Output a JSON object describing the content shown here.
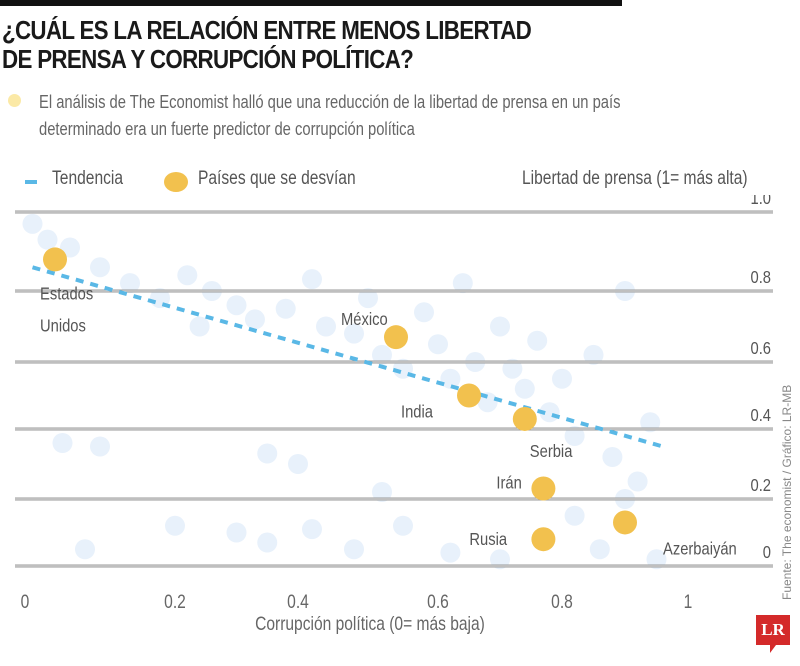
{
  "title_lines": [
    "¿CUÁL ES LA RELACIÓN ENTRE MENOS LIBERTAD",
    "DE PRENSA Y CORRUPCIÓN POLÍTICA?"
  ],
  "note_lines": [
    "El análisis de The Economist halló que  una reducción de la libertad de prensa en un país",
    "determinado era un fuerte predictor de corrupción política"
  ],
  "source": "Fuente: The economist / Gráfico: LR-MB",
  "logo": "LR",
  "colors": {
    "trend": "#5ab8e6",
    "highlight": "#f2c14e",
    "background_points": "#e8f1fb",
    "grid": "#999999",
    "note_dot": "#fbe9a6"
  },
  "chart_data": {
    "type": "scatter",
    "xlabel": "Corrupción política (0= más baja)",
    "ylabel": "Libertad de prensa (1= más alta)",
    "xlim": [
      0,
      1.1
    ],
    "ylim": [
      0,
      1.0
    ],
    "x_ticks": [
      "0",
      "0.2",
      "0.4",
      "0.6",
      "0.8",
      "1"
    ],
    "x_tick_values": [
      0,
      0.2,
      0.4,
      0.6,
      0.8,
      1
    ],
    "y_ticks": [
      "1.0",
      "0.8",
      "0.6",
      "0.4",
      "0.2",
      "0"
    ],
    "y_tick_values": [
      1.0,
      0.8,
      0.6,
      0.4,
      0.2,
      0
    ],
    "grid": "horizontal",
    "legend": {
      "placement": "top-left",
      "trend_label": "Tendencia",
      "highlight_label": "Países que se desvían"
    },
    "trend": {
      "x": [
        0.01,
        0.96
      ],
      "y": [
        0.86,
        0.35
      ]
    },
    "highlighted": [
      {
        "name": "Estados Unidos",
        "x": 0.04,
        "y": 0.88
      },
      {
        "name": "México",
        "x": 0.54,
        "y": 0.67
      },
      {
        "name": "India",
        "x": 0.65,
        "y": 0.5
      },
      {
        "name": "Serbia",
        "x": 0.74,
        "y": 0.43
      },
      {
        "name": "Irán",
        "x": 0.77,
        "y": 0.23
      },
      {
        "name": "Azerbaiyán",
        "x": 0.9,
        "y": 0.13
      },
      {
        "name": "Rusia",
        "x": 0.77,
        "y": 0.08
      }
    ],
    "background_points": [
      [
        0.01,
        0.97
      ],
      [
        0.03,
        0.93
      ],
      [
        0.06,
        0.91
      ],
      [
        0.1,
        0.86
      ],
      [
        0.14,
        0.82
      ],
      [
        0.18,
        0.78
      ],
      [
        0.22,
        0.84
      ],
      [
        0.26,
        0.8
      ],
      [
        0.3,
        0.76
      ],
      [
        0.24,
        0.7
      ],
      [
        0.33,
        0.72
      ],
      [
        0.38,
        0.75
      ],
      [
        0.42,
        0.83
      ],
      [
        0.44,
        0.7
      ],
      [
        0.48,
        0.68
      ],
      [
        0.5,
        0.78
      ],
      [
        0.52,
        0.62
      ],
      [
        0.55,
        0.58
      ],
      [
        0.58,
        0.74
      ],
      [
        0.6,
        0.65
      ],
      [
        0.62,
        0.55
      ],
      [
        0.64,
        0.82
      ],
      [
        0.66,
        0.6
      ],
      [
        0.68,
        0.48
      ],
      [
        0.7,
        0.7
      ],
      [
        0.72,
        0.58
      ],
      [
        0.74,
        0.52
      ],
      [
        0.76,
        0.66
      ],
      [
        0.78,
        0.45
      ],
      [
        0.8,
        0.55
      ],
      [
        0.82,
        0.38
      ],
      [
        0.85,
        0.62
      ],
      [
        0.88,
        0.32
      ],
      [
        0.9,
        0.8
      ],
      [
        0.92,
        0.25
      ],
      [
        0.94,
        0.42
      ],
      [
        0.05,
        0.36
      ],
      [
        0.1,
        0.35
      ],
      [
        0.35,
        0.33
      ],
      [
        0.4,
        0.3
      ],
      [
        0.52,
        0.22
      ],
      [
        0.2,
        0.12
      ],
      [
        0.3,
        0.1
      ],
      [
        0.35,
        0.07
      ],
      [
        0.42,
        0.11
      ],
      [
        0.48,
        0.05
      ],
      [
        0.55,
        0.12
      ],
      [
        0.62,
        0.04
      ],
      [
        0.7,
        0.02
      ],
      [
        0.82,
        0.15
      ],
      [
        0.86,
        0.05
      ],
      [
        0.9,
        0.2
      ],
      [
        0.95,
        0.02
      ],
      [
        0.08,
        0.05
      ]
    ]
  }
}
